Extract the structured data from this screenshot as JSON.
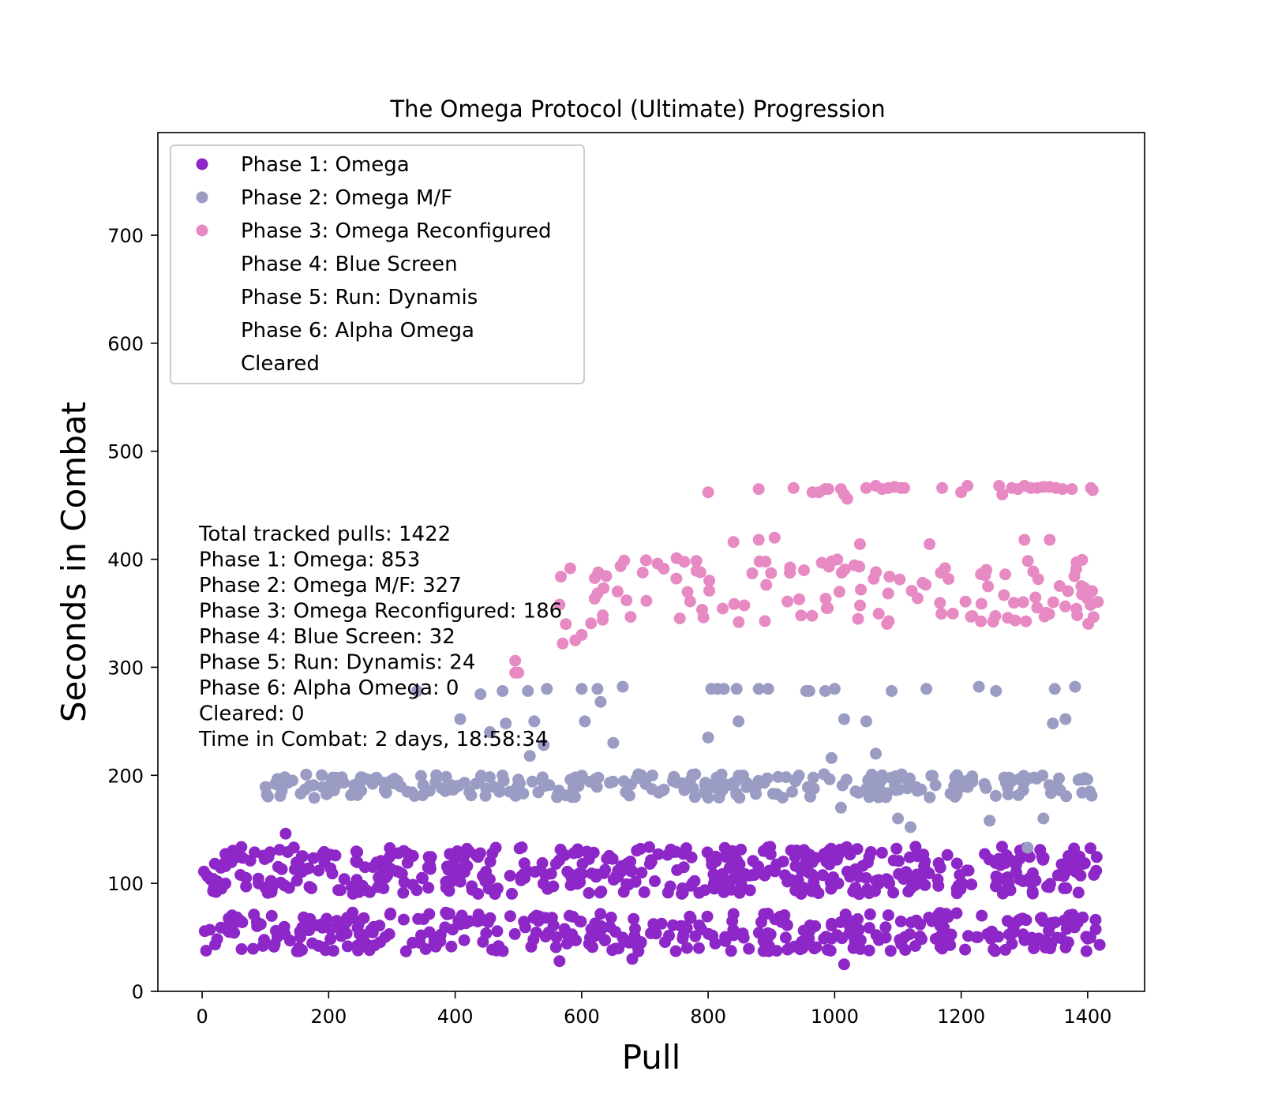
{
  "chart_data": {
    "type": "scatter",
    "title": "The Omega Protocol (Ultimate) Progression",
    "xlabel": "Pull",
    "ylabel": "Seconds in Combat",
    "xlim": [
      -70,
      1490
    ],
    "ylim": [
      0,
      795
    ],
    "xticks": [
      0,
      200,
      400,
      600,
      800,
      1000,
      1200,
      1400
    ],
    "yticks": [
      0,
      100,
      200,
      300,
      400,
      500,
      600,
      700
    ],
    "legend_position": "top-left",
    "grid": false,
    "series": [
      {
        "name": "Phase 1: Omega",
        "color": "#8e27c7",
        "clusters": [
          {
            "x_range": [
              0,
              1420
            ],
            "y_center": 112,
            "y_spread": 22,
            "count": 470
          },
          {
            "x_range": [
              0,
              1420
            ],
            "y_center": 55,
            "y_spread": 18,
            "count": 383
          }
        ],
        "extra_points": [
          [
            132,
            146
          ],
          [
            1015,
            25
          ],
          [
            565,
            28
          ],
          [
            680,
            30
          ]
        ]
      },
      {
        "name": "Phase 2: Omega M/F",
        "color": "#9a9cc3",
        "clusters": [
          {
            "x_range": [
              100,
              1420
            ],
            "y_center": 190,
            "y_spread": 11,
            "count": 265
          }
        ],
        "extra_points": [
          [
            340,
            278
          ],
          [
            440,
            275
          ],
          [
            455,
            240
          ],
          [
            475,
            278
          ],
          [
            480,
            248
          ],
          [
            515,
            278
          ],
          [
            518,
            218
          ],
          [
            525,
            250
          ],
          [
            540,
            228
          ],
          [
            545,
            280
          ],
          [
            600,
            280
          ],
          [
            605,
            250
          ],
          [
            625,
            280
          ],
          [
            630,
            268
          ],
          [
            650,
            230
          ],
          [
            665,
            282
          ],
          [
            800,
            235
          ],
          [
            805,
            280
          ],
          [
            815,
            280
          ],
          [
            825,
            280
          ],
          [
            845,
            280
          ],
          [
            848,
            250
          ],
          [
            880,
            280
          ],
          [
            895,
            280
          ],
          [
            955,
            278
          ],
          [
            960,
            278
          ],
          [
            985,
            278
          ],
          [
            995,
            216
          ],
          [
            1000,
            280
          ],
          [
            1010,
            170
          ],
          [
            1015,
            252
          ],
          [
            1050,
            250
          ],
          [
            1065,
            220
          ],
          [
            1075,
            200
          ],
          [
            1090,
            278
          ],
          [
            1100,
            160
          ],
          [
            1120,
            152
          ],
          [
            1145,
            280
          ],
          [
            1228,
            282
          ],
          [
            1245,
            158
          ],
          [
            1255,
            278
          ],
          [
            1305,
            133
          ],
          [
            1330,
            160
          ],
          [
            1345,
            248
          ],
          [
            1348,
            280
          ],
          [
            1365,
            252
          ],
          [
            1380,
            282
          ],
          [
            408,
            252
          ],
          [
            590,
            198
          ]
        ]
      },
      {
        "name": "Phase 3: Omega Reconfigured",
        "color": "#e78ac3",
        "clusters": [
          {
            "x_range": [
              560,
              1420
            ],
            "y_center": 370,
            "y_spread": 30,
            "count": 128
          }
        ],
        "extra_points": [
          [
            495,
            306
          ],
          [
            495,
            295
          ],
          [
            565,
            358
          ],
          [
            570,
            322
          ],
          [
            800,
            462
          ],
          [
            880,
            465
          ],
          [
            935,
            466
          ],
          [
            965,
            462
          ],
          [
            975,
            462
          ],
          [
            985,
            465
          ],
          [
            990,
            465
          ],
          [
            1010,
            465
          ],
          [
            1015,
            460
          ],
          [
            1020,
            456
          ],
          [
            1050,
            466
          ],
          [
            1065,
            468
          ],
          [
            1075,
            465
          ],
          [
            1085,
            466
          ],
          [
            1095,
            467
          ],
          [
            1105,
            466
          ],
          [
            1110,
            466
          ],
          [
            1170,
            466
          ],
          [
            1200,
            462
          ],
          [
            1210,
            468
          ],
          [
            1260,
            468
          ],
          [
            1265,
            460
          ],
          [
            1280,
            466
          ],
          [
            1290,
            465
          ],
          [
            1300,
            468
          ],
          [
            1310,
            466
          ],
          [
            1320,
            466
          ],
          [
            1330,
            467
          ],
          [
            1340,
            467
          ],
          [
            1350,
            466
          ],
          [
            1360,
            465
          ],
          [
            1375,
            465
          ],
          [
            1405,
            466
          ],
          [
            1408,
            464
          ],
          [
            500,
            295
          ],
          [
            575,
            340
          ],
          [
            590,
            325
          ],
          [
            600,
            330
          ],
          [
            720,
            396
          ],
          [
            750,
            401
          ],
          [
            840,
            416
          ],
          [
            880,
            418
          ],
          [
            905,
            420
          ],
          [
            1040,
            414
          ],
          [
            1150,
            414
          ],
          [
            1300,
            418
          ],
          [
            1340,
            418
          ]
        ]
      }
    ],
    "legend_only": [
      "Phase 4: Blue Screen",
      "Phase 5: Run: Dynamis",
      "Phase 6: Alpha Omega",
      "Cleared"
    ],
    "annotations": [
      "Total tracked pulls: 1422",
      "Phase 1: Omega: 853",
      "Phase 2: Omega M/F: 327",
      "Phase 3: Omega Reconfigured: 186",
      "Phase 4: Blue Screen: 32",
      "Phase 5: Run: Dynamis: 24",
      "Phase 6: Alpha Omega: 0",
      "Cleared: 0",
      "Time in Combat: 2 days, 18:58:34"
    ]
  }
}
